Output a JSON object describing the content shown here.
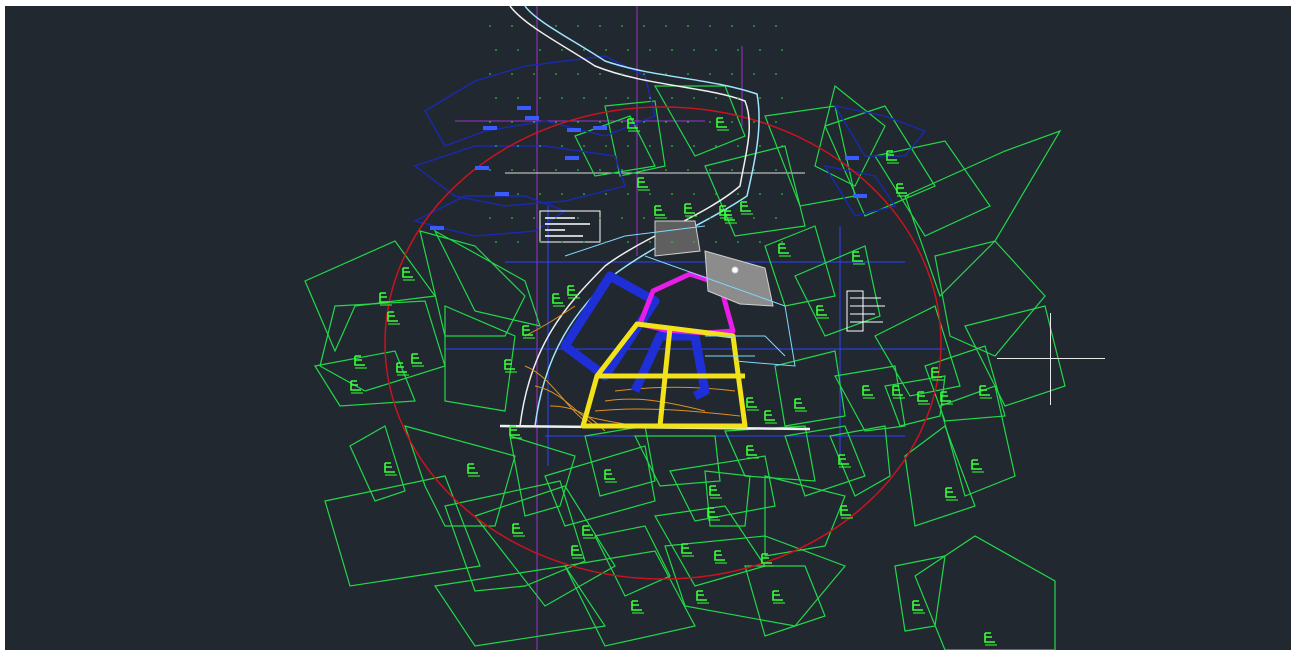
{
  "app": {
    "viewport_label": "",
    "background_color": "#212830"
  },
  "colors": {
    "parcel_lines": "#22d84a",
    "parcel_labels": "#39ff39",
    "boundary_circle": "#c8141e",
    "blue_zone": "#1f2fd8",
    "dark_blue": "#1a2ab0",
    "yellow_outline": "#f2e21a",
    "magenta_outline": "#e61ee6",
    "contours": "#e09020",
    "road_white": "#f0f0f0",
    "grid_magenta": "#b040d0",
    "grid_blue": "#3050ff",
    "cursor": "#e8e8e8"
  },
  "icons": {
    "cursor": "crosshair-icon",
    "legend": "legend-box-icon"
  }
}
